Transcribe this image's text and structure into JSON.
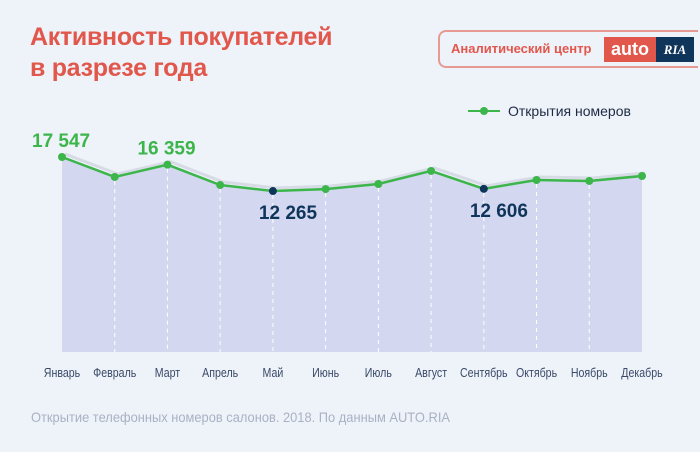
{
  "header": {
    "title_line1": "Активность покупателей",
    "title_line2": "в разрезе года"
  },
  "logo": {
    "caption": "Аналитический центр",
    "auto": "auto",
    "ria": "RIA"
  },
  "colors": {
    "accent": "#e2574c",
    "line": "#3cb54a",
    "dark": "#10355a",
    "fill": "#d3d8f0"
  },
  "footer": "Открытие телефонных номеров салонов. 2018. По данным AUTO.RIA",
  "chart_data": {
    "type": "area",
    "title": "Активность покупателей в разрезе года",
    "categories": [
      "Январь",
      "Февраль",
      "Март",
      "Апрель",
      "Май",
      "Июнь",
      "Июль",
      "Август",
      "Сентябрь",
      "Октябрь",
      "Ноябрь",
      "Декабрь"
    ],
    "series": [
      {
        "name": "Открытия номеров",
        "values": [
          17547,
          14450,
          16359,
          13200,
          12265,
          12570,
          13360,
          15380,
          12606,
          13980,
          13830,
          14600
        ]
      }
    ],
    "data_labels": [
      {
        "index": 0,
        "text": "17 547",
        "color": "#3cb54a",
        "position": "above"
      },
      {
        "index": 2,
        "text": "16 359",
        "color": "#3cb54a",
        "position": "above"
      },
      {
        "index": 4,
        "text": "12 265",
        "color": "#10355a",
        "position": "below"
      },
      {
        "index": 8,
        "text": "12 606",
        "color": "#10355a",
        "position": "below"
      }
    ],
    "ylim": [
      -12700,
      17547
    ],
    "legend": "top-right",
    "grid": false
  }
}
